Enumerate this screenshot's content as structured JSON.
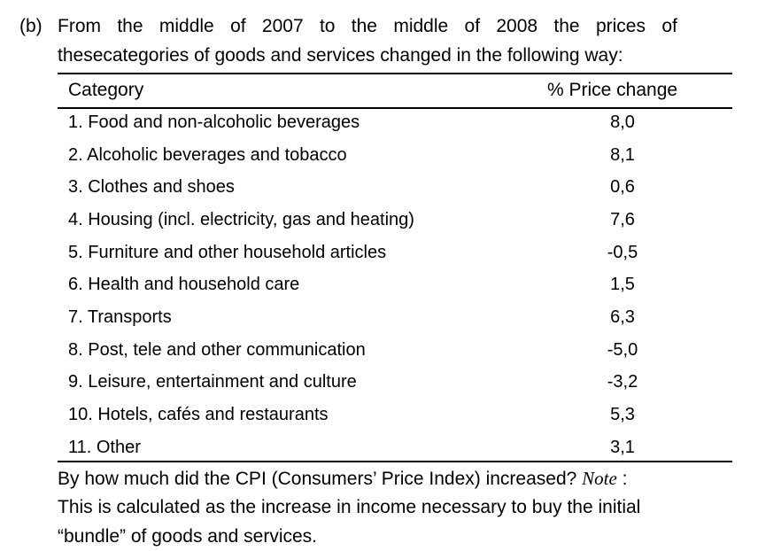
{
  "question": {
    "label": "(b)",
    "intro_line1_words": [
      "From",
      "the",
      "middle",
      "of",
      "2007",
      "to",
      "the",
      "middle",
      "of",
      "2008",
      "the",
      "prices",
      "of"
    ],
    "intro_line2": "thesecategories of goods and services changed in the following way:"
  },
  "table": {
    "headers": {
      "category": "Category",
      "price_change": "% Price change"
    },
    "rows": [
      {
        "category": "1. Food and non-alcoholic beverages",
        "value": "8,0"
      },
      {
        "category": "2. Alcoholic beverages and tobacco",
        "value": "8,1"
      },
      {
        "category": "3. Clothes and shoes",
        "value": "0,6"
      },
      {
        "category": "4. Housing (incl. electricity, gas and heating)",
        "value": "7,6"
      },
      {
        "category": "5. Furniture and other household articles",
        "value": "-0,5"
      },
      {
        "category": "6. Health and household care",
        "value": "1,5"
      },
      {
        "category": "7. Transports",
        "value": "6,3"
      },
      {
        "category": "8. Post, tele and other communication",
        "value": "-5,0"
      },
      {
        "category": "9. Leisure, entertainment and culture",
        "value": "-3,2"
      },
      {
        "category": "10. Hotels, cafés and restaurants",
        "value": "5,3"
      },
      {
        "category": "11. Other",
        "value": "3,1"
      }
    ]
  },
  "followup": {
    "line1_pre": "By how much did the CPI (Consumers’ Price Index) increased? ",
    "line1_note": "Note",
    "line1_post": " :",
    "line2": "This is calculated as the increase in income necessary to buy the initial",
    "line3": "“bundle” of goods and services."
  }
}
